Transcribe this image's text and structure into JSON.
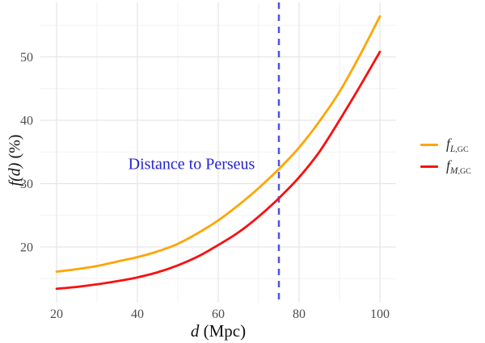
{
  "chart_data": {
    "type": "line",
    "title": "",
    "xlabel_var": "d",
    "xlabel_unit": " (Mpc)",
    "ylabel_var": "f(d)",
    "ylabel_unit": " (%)",
    "xlim": [
      20,
      100
    ],
    "ylim": [
      11.5,
      58.5
    ],
    "x_major_ticks": [
      20,
      40,
      60,
      80,
      100
    ],
    "x_minor_ticks": [
      30,
      50,
      70,
      90
    ],
    "y_major_ticks": [
      20,
      30,
      40,
      50
    ],
    "y_minor_ticks": [
      15,
      25,
      35,
      45,
      55
    ],
    "grid": true,
    "legend_position": "right",
    "x": [
      20,
      25,
      30,
      35,
      40,
      45,
      50,
      55,
      60,
      65,
      70,
      75,
      80,
      85,
      90,
      95,
      100
    ],
    "series": [
      {
        "name": "f_L,GC",
        "color": "#FFA500",
        "values": [
          16.1,
          16.5,
          17.0,
          17.7,
          18.4,
          19.3,
          20.5,
          22.2,
          24.2,
          26.6,
          29.3,
          32.3,
          35.7,
          39.8,
          44.5,
          50.2,
          56.4
        ]
      },
      {
        "name": "f_M,GC",
        "color": "#FA0F0F",
        "values": [
          13.4,
          13.7,
          14.1,
          14.6,
          15.2,
          16.0,
          17.1,
          18.5,
          20.3,
          22.3,
          24.8,
          27.7,
          31.0,
          35.0,
          40.0,
          45.3,
          50.8
        ]
      }
    ],
    "vline": {
      "x": 75,
      "color": "#5050E6",
      "style": "dashed"
    },
    "annotation": {
      "text": "Distance to Perseus",
      "color": "#2525CE"
    }
  },
  "legend": {
    "items": [
      {
        "symbol": "f",
        "sub_var": "L",
        "sub_rest": ",GC",
        "color": "#FFA500"
      },
      {
        "symbol": "f",
        "sub_var": "M",
        "sub_rest": ",GC",
        "color": "#FA0F0F"
      }
    ]
  },
  "style": {
    "grid_major_color": "#E6E6E6",
    "grid_minor_color": "#F2F2F2",
    "tick_label_color": "#4d4d4d",
    "background": "#ffffff"
  }
}
